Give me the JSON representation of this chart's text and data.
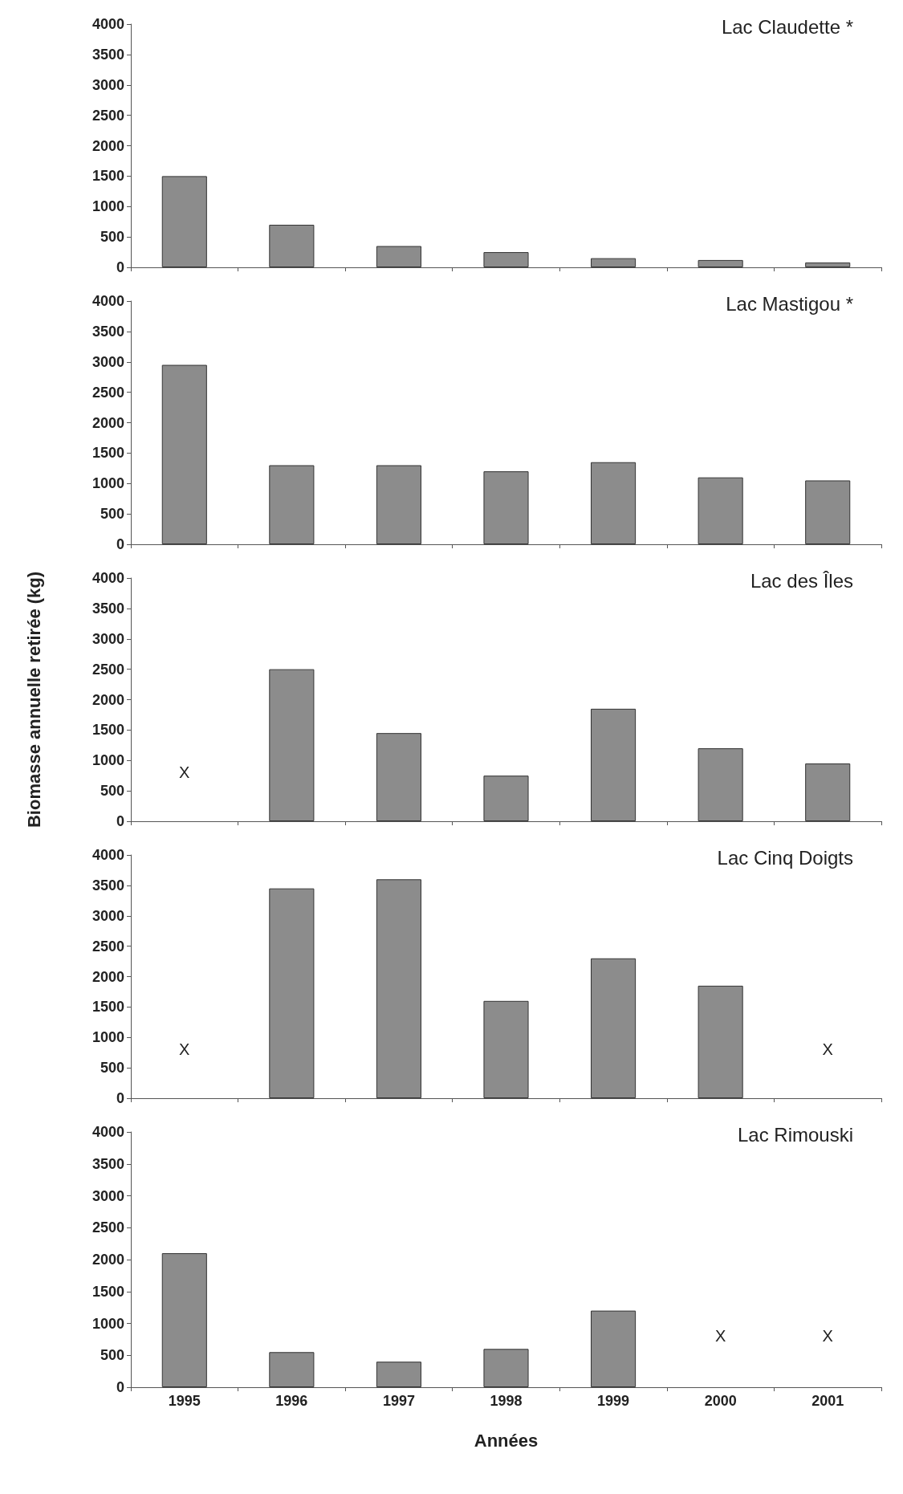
{
  "chart_data": [
    {
      "type": "bar",
      "title": "Lac Claudette *",
      "categories": [
        "1995",
        "1996",
        "1997",
        "1998",
        "1999",
        "2000",
        "2001"
      ],
      "values": [
        1500,
        700,
        350,
        250,
        150,
        120,
        80
      ],
      "color": "#8c8c8c",
      "ylim": [
        0,
        4000
      ],
      "yticks": [
        0,
        500,
        1000,
        1500,
        2000,
        2500,
        3000,
        3500,
        4000
      ],
      "tick_labels": "y"
    },
    {
      "type": "bar",
      "title": "Lac Mastigou *",
      "categories": [
        "1995",
        "1996",
        "1997",
        "1998",
        "1999",
        "2000",
        "2001"
      ],
      "values": [
        2950,
        1300,
        1300,
        1200,
        1350,
        1100,
        1050
      ],
      "color": "#8c8c8c",
      "ylim": [
        0,
        4000
      ],
      "yticks": [
        0,
        500,
        1000,
        1500,
        2000,
        2500,
        3000,
        3500,
        4000
      ],
      "tick_labels": "y"
    },
    {
      "type": "bar",
      "title": "Lac des Îles",
      "ylabel": "Biomasse annuelle retirée (kg)",
      "categories": [
        "1995",
        "1996",
        "1997",
        "1998",
        "1999",
        "2000",
        "2001"
      ],
      "values": [
        null,
        2500,
        1450,
        750,
        1850,
        1200,
        950
      ],
      "color": "#8c8c8c",
      "ylim": [
        0,
        4000
      ],
      "yticks": [
        0,
        500,
        1000,
        1500,
        2000,
        2500,
        3000,
        3500,
        4000
      ],
      "tick_labels": "y",
      "annotations": [
        "X"
      ]
    },
    {
      "type": "bar",
      "title": "Lac Cinq Doigts",
      "categories": [
        "1995",
        "1996",
        "1997",
        "1998",
        "1999",
        "2000",
        "2001"
      ],
      "values": [
        null,
        3450,
        3600,
        1600,
        2300,
        1850,
        null
      ],
      "color": "#8c8c8c",
      "ylim": [
        0,
        4000
      ],
      "yticks": [
        0,
        500,
        1000,
        1500,
        2000,
        2500,
        3000,
        3500,
        4000
      ],
      "tick_labels": "y",
      "annotations": [
        "X",
        "X"
      ]
    },
    {
      "type": "bar",
      "title": "Lac Rimouski",
      "xlabel": "Années",
      "categories": [
        "1995",
        "1996",
        "1997",
        "1998",
        "1999",
        "2000",
        "2001"
      ],
      "values": [
        2100,
        550,
        400,
        600,
        1200,
        null,
        null
      ],
      "color": "#8c8c8c",
      "ylim": [
        0,
        4000
      ],
      "yticks": [
        0,
        500,
        1000,
        1500,
        2000,
        2500,
        3000,
        3500,
        4000
      ],
      "annotations": [
        "X",
        "X"
      ]
    }
  ]
}
